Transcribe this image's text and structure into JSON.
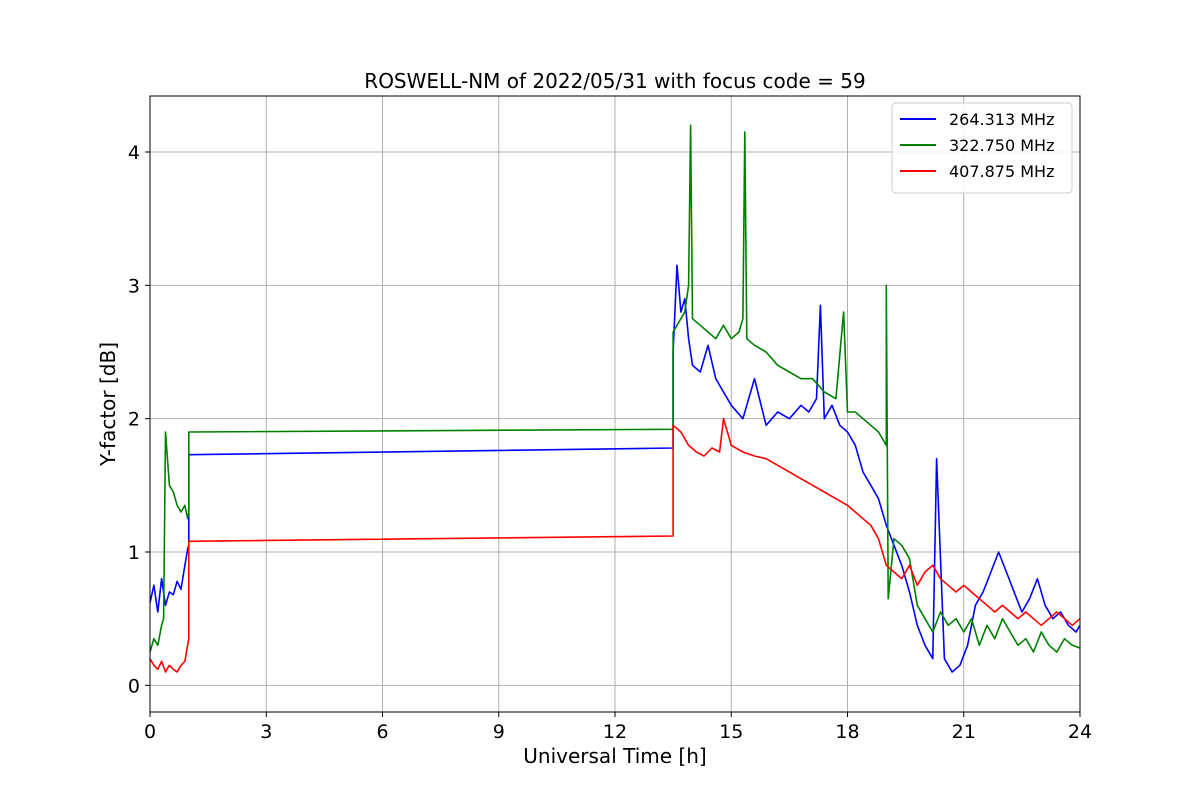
{
  "chart_data": {
    "type": "line",
    "title": "ROSWELL-NM of 2022/05/31 with focus code = 59",
    "xlabel": "Universal Time [h]",
    "ylabel": "Y-factor [dB]",
    "xlim": [
      0,
      24
    ],
    "ylim": [
      -0.2,
      4.42
    ],
    "xticks": [
      0,
      3,
      6,
      9,
      12,
      15,
      18,
      21,
      24
    ],
    "yticks": [
      0,
      1,
      2,
      3,
      4
    ],
    "grid": true,
    "legend_position": "top-right",
    "series": [
      {
        "name": "264.313 MHz",
        "color": "#0000ff",
        "x": [
          0,
          0.1,
          0.2,
          0.3,
          0.4,
          0.5,
          0.6,
          0.7,
          0.8,
          0.9,
          0.97,
          1.0,
          1.0,
          13.5,
          13.5,
          13.6,
          13.7,
          13.8,
          13.9,
          14.0,
          14.2,
          14.4,
          14.6,
          14.8,
          15.0,
          15.3,
          15.6,
          15.9,
          16.2,
          16.5,
          16.8,
          17.0,
          17.2,
          17.3,
          17.4,
          17.6,
          17.8,
          18.0,
          18.2,
          18.4,
          18.6,
          18.8,
          19.0,
          19.2,
          19.4,
          19.6,
          19.8,
          20.0,
          20.2,
          20.3,
          20.5,
          20.7,
          20.9,
          21.1,
          21.3,
          21.5,
          21.7,
          21.9,
          22.1,
          22.3,
          22.5,
          22.7,
          22.9,
          23.1,
          23.3,
          23.5,
          23.7,
          23.9,
          24.0
        ],
        "y": [
          0.62,
          0.75,
          0.55,
          0.8,
          0.6,
          0.7,
          0.68,
          0.78,
          0.72,
          0.9,
          1.02,
          1.05,
          1.73,
          1.78,
          2.5,
          3.15,
          2.8,
          2.9,
          2.6,
          2.4,
          2.35,
          2.55,
          2.3,
          2.2,
          2.1,
          2.0,
          2.3,
          1.95,
          2.05,
          2.0,
          2.1,
          2.05,
          2.15,
          2.85,
          2.0,
          2.1,
          1.95,
          1.9,
          1.8,
          1.6,
          1.5,
          1.4,
          1.2,
          1.05,
          0.9,
          0.7,
          0.45,
          0.3,
          0.2,
          1.7,
          0.2,
          0.1,
          0.15,
          0.3,
          0.6,
          0.7,
          0.85,
          1.0,
          0.85,
          0.7,
          0.55,
          0.65,
          0.8,
          0.6,
          0.5,
          0.55,
          0.45,
          0.4,
          0.45
        ]
      },
      {
        "name": "322.750 MHz",
        "color": "#008000",
        "x": [
          0,
          0.1,
          0.2,
          0.3,
          0.35,
          0.4,
          0.5,
          0.6,
          0.7,
          0.8,
          0.9,
          0.97,
          1.0,
          1.0,
          13.5,
          13.5,
          13.6,
          13.8,
          13.9,
          13.95,
          14.0,
          14.2,
          14.4,
          14.6,
          14.8,
          15.0,
          15.2,
          15.3,
          15.35,
          15.4,
          15.6,
          15.9,
          16.2,
          16.5,
          16.8,
          17.1,
          17.4,
          17.7,
          17.9,
          18.0,
          18.2,
          18.4,
          18.6,
          18.8,
          19.0,
          19.0,
          19.05,
          19.2,
          19.4,
          19.6,
          19.8,
          20.0,
          20.2,
          20.4,
          20.6,
          20.8,
          21.0,
          21.2,
          21.4,
          21.6,
          21.8,
          22.0,
          22.2,
          22.4,
          22.6,
          22.8,
          23.0,
          23.2,
          23.4,
          23.6,
          23.8,
          24.0
        ],
        "y": [
          0.25,
          0.35,
          0.3,
          0.45,
          0.5,
          1.9,
          1.5,
          1.45,
          1.35,
          1.3,
          1.35,
          1.25,
          1.3,
          1.9,
          1.92,
          2.65,
          2.7,
          2.8,
          3.0,
          4.2,
          2.75,
          2.7,
          2.65,
          2.6,
          2.7,
          2.6,
          2.65,
          2.75,
          4.15,
          2.6,
          2.55,
          2.5,
          2.4,
          2.35,
          2.3,
          2.3,
          2.2,
          2.15,
          2.8,
          2.05,
          2.05,
          2.0,
          1.95,
          1.9,
          1.8,
          3.0,
          0.65,
          1.1,
          1.05,
          0.95,
          0.6,
          0.5,
          0.4,
          0.55,
          0.45,
          0.5,
          0.4,
          0.5,
          0.3,
          0.45,
          0.35,
          0.5,
          0.4,
          0.3,
          0.35,
          0.25,
          0.4,
          0.3,
          0.25,
          0.35,
          0.3,
          0.28
        ]
      },
      {
        "name": "407.875 MHz",
        "color": "#ff0000",
        "x": [
          0,
          0.1,
          0.2,
          0.3,
          0.4,
          0.5,
          0.6,
          0.7,
          0.8,
          0.9,
          0.97,
          1.0,
          1.0,
          13.5,
          13.5,
          13.7,
          13.9,
          14.1,
          14.3,
          14.5,
          14.7,
          14.8,
          15.0,
          15.3,
          15.6,
          15.9,
          16.2,
          16.5,
          16.8,
          17.1,
          17.4,
          17.7,
          18.0,
          18.2,
          18.4,
          18.6,
          18.8,
          19.0,
          19.2,
          19.4,
          19.6,
          19.8,
          20.0,
          20.2,
          20.4,
          20.6,
          20.8,
          21.0,
          21.2,
          21.4,
          21.6,
          21.8,
          22.0,
          22.2,
          22.4,
          22.6,
          22.8,
          23.0,
          23.2,
          23.4,
          23.6,
          23.8,
          24.0
        ],
        "y": [
          0.2,
          0.15,
          0.12,
          0.18,
          0.1,
          0.15,
          0.12,
          0.1,
          0.15,
          0.18,
          0.3,
          0.35,
          1.08,
          1.12,
          1.95,
          1.9,
          1.8,
          1.75,
          1.72,
          1.78,
          1.75,
          2.0,
          1.8,
          1.75,
          1.72,
          1.7,
          1.65,
          1.6,
          1.55,
          1.5,
          1.45,
          1.4,
          1.35,
          1.3,
          1.25,
          1.2,
          1.1,
          0.9,
          0.85,
          0.8,
          0.9,
          0.75,
          0.85,
          0.9,
          0.8,
          0.75,
          0.7,
          0.75,
          0.7,
          0.65,
          0.6,
          0.55,
          0.6,
          0.55,
          0.5,
          0.55,
          0.5,
          0.45,
          0.5,
          0.55,
          0.5,
          0.45,
          0.5
        ]
      }
    ]
  }
}
